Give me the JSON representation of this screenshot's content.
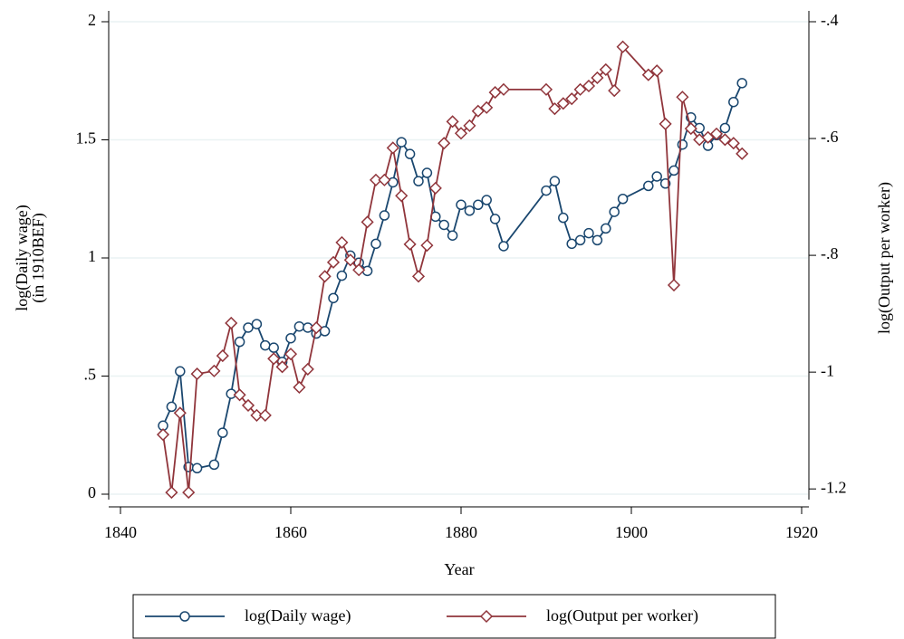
{
  "chart_data": {
    "type": "line",
    "xlabel": "Year",
    "ylabel": [
      "log(Daily wage)",
      "(in 1910BEF)"
    ],
    "y2label": "log(Output per worker)",
    "xlim": [
      1840,
      1920
    ],
    "xticks": [
      1840,
      1860,
      1880,
      1900,
      1920
    ],
    "ylim": [
      0,
      2
    ],
    "yticks": [
      0,
      {
        "value": 0.5,
        "label": ".5"
      },
      1,
      {
        "value": 1.5,
        "label": "1.5"
      },
      2
    ],
    "y2lim": [
      -1.209,
      -0.4
    ],
    "y2ticks": [
      {
        "value": -1.2,
        "label": "-1.2"
      },
      -1,
      {
        "value": -0.8,
        "label": "-.8"
      },
      {
        "value": -0.6,
        "label": "-.6"
      },
      {
        "value": -0.4,
        "label": "-.4"
      }
    ],
    "grid": true,
    "legend": "bottom",
    "x": [
      1845,
      1846,
      1847,
      1848,
      1849,
      1851,
      1852,
      1853,
      1854,
      1855,
      1856,
      1857,
      1858,
      1859,
      1860,
      1861,
      1862,
      1863,
      1864,
      1865,
      1866,
      1867,
      1868,
      1869,
      1870,
      1871,
      1872,
      1873,
      1874,
      1875,
      1876,
      1877,
      1878,
      1879,
      1880,
      1881,
      1882,
      1883,
      1884,
      1885,
      1890,
      1891,
      1892,
      1893,
      1894,
      1895,
      1896,
      1897,
      1898,
      1899,
      1902,
      1903,
      1904,
      1905,
      1906,
      1907,
      1908,
      1909,
      1910,
      1911,
      1912,
      1913
    ],
    "series": [
      {
        "name": "log(Daily wage)",
        "color": "#1a476f",
        "marker": "circle",
        "values": [
          0.29,
          0.37,
          0.52,
          0.115,
          0.11,
          0.125,
          0.26,
          0.425,
          0.645,
          0.705,
          0.72,
          0.63,
          0.62,
          0.56,
          0.66,
          0.71,
          0.705,
          0.68,
          0.69,
          0.83,
          0.925,
          1.01,
          0.98,
          0.945,
          1.06,
          1.18,
          1.32,
          1.49,
          1.44,
          1.325,
          1.36,
          1.175,
          1.14,
          1.095,
          1.225,
          1.2,
          1.225,
          1.245,
          1.165,
          1.05,
          1.285,
          1.325,
          1.17,
          1.06,
          1.075,
          1.105,
          1.075,
          1.125,
          1.195,
          1.25,
          1.305,
          1.345,
          1.315,
          1.37,
          1.48,
          1.595,
          1.55,
          1.475,
          1.52,
          1.55,
          1.66,
          1.74
        ]
      },
      {
        "name": "log(Output per worker)",
        "color": "#90353b",
        "marker": "diamond",
        "axis": "y2",
        "values": [
          -1.107,
          -1.206,
          -1.07,
          -1.206,
          -1.003,
          -0.998,
          -0.972,
          -0.916,
          -1.039,
          -1.057,
          -1.074,
          -1.074,
          -0.977,
          -0.991,
          -0.969,
          -1.026,
          -0.995,
          -0.924,
          -0.836,
          -0.812,
          -0.778,
          -0.808,
          -0.825,
          -0.743,
          -0.671,
          -0.671,
          -0.616,
          -0.698,
          -0.781,
          -0.836,
          -0.783,
          -0.685,
          -0.608,
          -0.571,
          -0.591,
          -0.578,
          -0.553,
          -0.547,
          -0.521,
          -0.516,
          -0.516,
          -0.549,
          -0.54,
          -0.532,
          -0.516,
          -0.51,
          -0.496,
          -0.482,
          -0.518,
          -0.443,
          -0.491,
          -0.484,
          -0.575,
          -0.851,
          -0.529,
          -0.583,
          -0.602,
          -0.598,
          -0.592,
          -0.602,
          -0.608,
          -0.626
        ]
      }
    ]
  }
}
